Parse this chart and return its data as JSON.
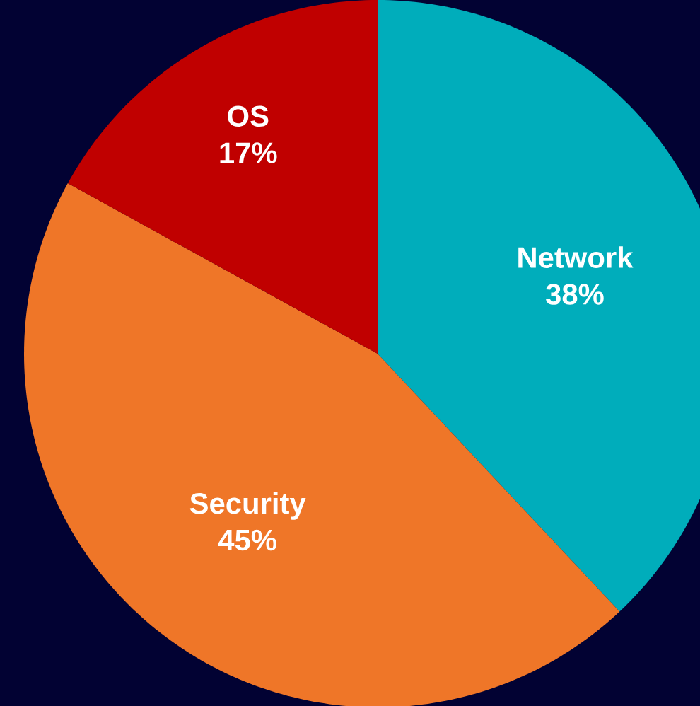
{
  "chart_data": {
    "type": "pie",
    "categories": [
      "Network",
      "Security",
      "OS"
    ],
    "values": [
      38,
      45,
      17
    ],
    "value_labels": [
      "38%",
      "45%",
      "17%"
    ],
    "colors": [
      "#00adbb",
      "#ef7628",
      "#c00000"
    ]
  }
}
